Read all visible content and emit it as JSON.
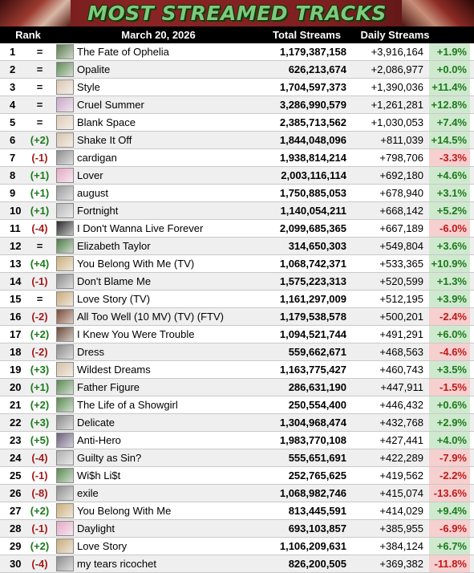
{
  "banner": {
    "title": "MOST STREAMED TRACKS"
  },
  "header": {
    "rank": "Rank",
    "date": "March 20, 2026",
    "total": "Total Streams",
    "daily": "Daily Streams"
  },
  "colors": {
    "up": "#1b7a1b",
    "down": "#a31a1a",
    "pos_bg": "#cfe9cf",
    "neg_bg": "#f6cfcf",
    "title": "#7ec97a"
  },
  "rows": [
    {
      "rank": "1",
      "move": "=",
      "title": "The Fate of Ophelia",
      "total": "1,179,387,158",
      "daily": "+3,916,164",
      "pct": "+1.9%",
      "art": "#5a7a4a"
    },
    {
      "rank": "2",
      "move": "=",
      "title": "Opalite",
      "total": "626,213,674",
      "daily": "+2,086,977",
      "pct": "+0.0%",
      "art": "#5f8a55"
    },
    {
      "rank": "3",
      "move": "=",
      "title": "Style",
      "total": "1,704,597,373",
      "daily": "+1,390,036",
      "pct": "+11.4%",
      "art": "#d9c7b3"
    },
    {
      "rank": "4",
      "move": "=",
      "title": "Cruel Summer",
      "total": "3,286,990,579",
      "daily": "+1,261,281",
      "pct": "+12.8%",
      "art": "#c9a7c7"
    },
    {
      "rank": "5",
      "move": "=",
      "title": "Blank Space",
      "total": "2,385,713,562",
      "daily": "+1,030,053",
      "pct": "+7.4%",
      "art": "#dccab5"
    },
    {
      "rank": "6",
      "move": "(+2)",
      "title": "Shake It Off",
      "total": "1,844,048,096",
      "daily": "+811,039",
      "pct": "+14.5%",
      "art": "#d6c3ad"
    },
    {
      "rank": "7",
      "move": "(-1)",
      "title": "cardigan",
      "total": "1,938,814,214",
      "daily": "+798,706",
      "pct": "-3.3%",
      "art": "#8e8e8e"
    },
    {
      "rank": "8",
      "move": "(+1)",
      "title": "Lover",
      "total": "2,003,116,114",
      "daily": "+692,180",
      "pct": "+4.6%",
      "art": "#e3a9c3"
    },
    {
      "rank": "9",
      "move": "(+1)",
      "title": "august",
      "total": "1,750,885,053",
      "daily": "+678,940",
      "pct": "+3.1%",
      "art": "#9a9a9a"
    },
    {
      "rank": "10",
      "move": "(+1)",
      "title": "Fortnight",
      "total": "1,140,054,211",
      "daily": "+668,142",
      "pct": "+5.2%",
      "art": "#b5b5b5"
    },
    {
      "rank": "11",
      "move": "(-4)",
      "title": "I Don't Wanna Live Forever",
      "total": "2,099,685,365",
      "daily": "+667,189",
      "pct": "-6.0%",
      "art": "#2a2a2a"
    },
    {
      "rank": "12",
      "move": "=",
      "title": "Elizabeth Taylor",
      "total": "314,650,303",
      "daily": "+549,804",
      "pct": "+3.6%",
      "art": "#4f7a4a"
    },
    {
      "rank": "13",
      "move": "(+4)",
      "title": "You Belong With Me (TV)",
      "total": "1,068,742,371",
      "daily": "+533,365",
      "pct": "+10.9%",
      "art": "#c9ae7a"
    },
    {
      "rank": "14",
      "move": "(-1)",
      "title": "Don't Blame Me",
      "total": "1,575,223,313",
      "daily": "+520,599",
      "pct": "+1.3%",
      "art": "#8a8a8a"
    },
    {
      "rank": "15",
      "move": "=",
      "title": "Love Story (TV)",
      "total": "1,161,297,009",
      "daily": "+512,195",
      "pct": "+3.9%",
      "art": "#c8ab7c"
    },
    {
      "rank": "16",
      "move": "(-2)",
      "title": "All Too Well (10 MV) (TV) (FTV)",
      "total": "1,179,538,578",
      "daily": "+500,201",
      "pct": "-2.4%",
      "art": "#7a4a35"
    },
    {
      "rank": "17",
      "move": "(+2)",
      "title": "I Knew You Were Trouble",
      "total": "1,094,521,744",
      "daily": "+491,291",
      "pct": "+6.0%",
      "art": "#6a4a3a"
    },
    {
      "rank": "18",
      "move": "(-2)",
      "title": "Dress",
      "total": "559,662,671",
      "daily": "+468,563",
      "pct": "-4.6%",
      "art": "#8a8a8a"
    },
    {
      "rank": "19",
      "move": "(+3)",
      "title": "Wildest Dreams",
      "total": "1,163,775,427",
      "daily": "+460,743",
      "pct": "+3.5%",
      "art": "#d4bfa6"
    },
    {
      "rank": "20",
      "move": "(+1)",
      "title": "Father Figure",
      "total": "286,631,190",
      "daily": "+447,911",
      "pct": "-1.5%",
      "art": "#5b8a52"
    },
    {
      "rank": "21",
      "move": "(+2)",
      "title": "The Life of a Showgirl",
      "total": "250,554,400",
      "daily": "+446,432",
      "pct": "+0.6%",
      "art": "#5b8a52"
    },
    {
      "rank": "22",
      "move": "(+3)",
      "title": "Delicate",
      "total": "1,304,968,474",
      "daily": "+432,768",
      "pct": "+2.9%",
      "art": "#8a8a8a"
    },
    {
      "rank": "23",
      "move": "(+5)",
      "title": "Anti-Hero",
      "total": "1,983,770,108",
      "daily": "+427,441",
      "pct": "+4.0%",
      "art": "#6a5f7a"
    },
    {
      "rank": "24",
      "move": "(-4)",
      "title": "Guilty as Sin?",
      "total": "555,651,691",
      "daily": "+422,289",
      "pct": "-7.9%",
      "art": "#b0b0b0"
    },
    {
      "rank": "25",
      "move": "(-1)",
      "title": "Wi$h Li$t",
      "total": "252,765,625",
      "daily": "+419,562",
      "pct": "-2.2%",
      "art": "#5b8a52"
    },
    {
      "rank": "26",
      "move": "(-8)",
      "title": "exile",
      "total": "1,068,982,746",
      "daily": "+415,074",
      "pct": "-13.6%",
      "art": "#8e8e8e"
    },
    {
      "rank": "27",
      "move": "(+2)",
      "title": "You Belong With Me",
      "total": "813,445,591",
      "daily": "+414,029",
      "pct": "+9.4%",
      "art": "#c9ae7a"
    },
    {
      "rank": "28",
      "move": "(-1)",
      "title": "Daylight",
      "total": "693,103,857",
      "daily": "+385,955",
      "pct": "-6.9%",
      "art": "#e3a9c3"
    },
    {
      "rank": "29",
      "move": "(+2)",
      "title": "Love Story",
      "total": "1,106,209,631",
      "daily": "+384,124",
      "pct": "+6.7%",
      "art": "#c8ab7c"
    },
    {
      "rank": "30",
      "move": "(-4)",
      "title": "my tears ricochet",
      "total": "826,200,505",
      "daily": "+369,382",
      "pct": "-11.8%",
      "art": "#8e8e8e"
    }
  ]
}
